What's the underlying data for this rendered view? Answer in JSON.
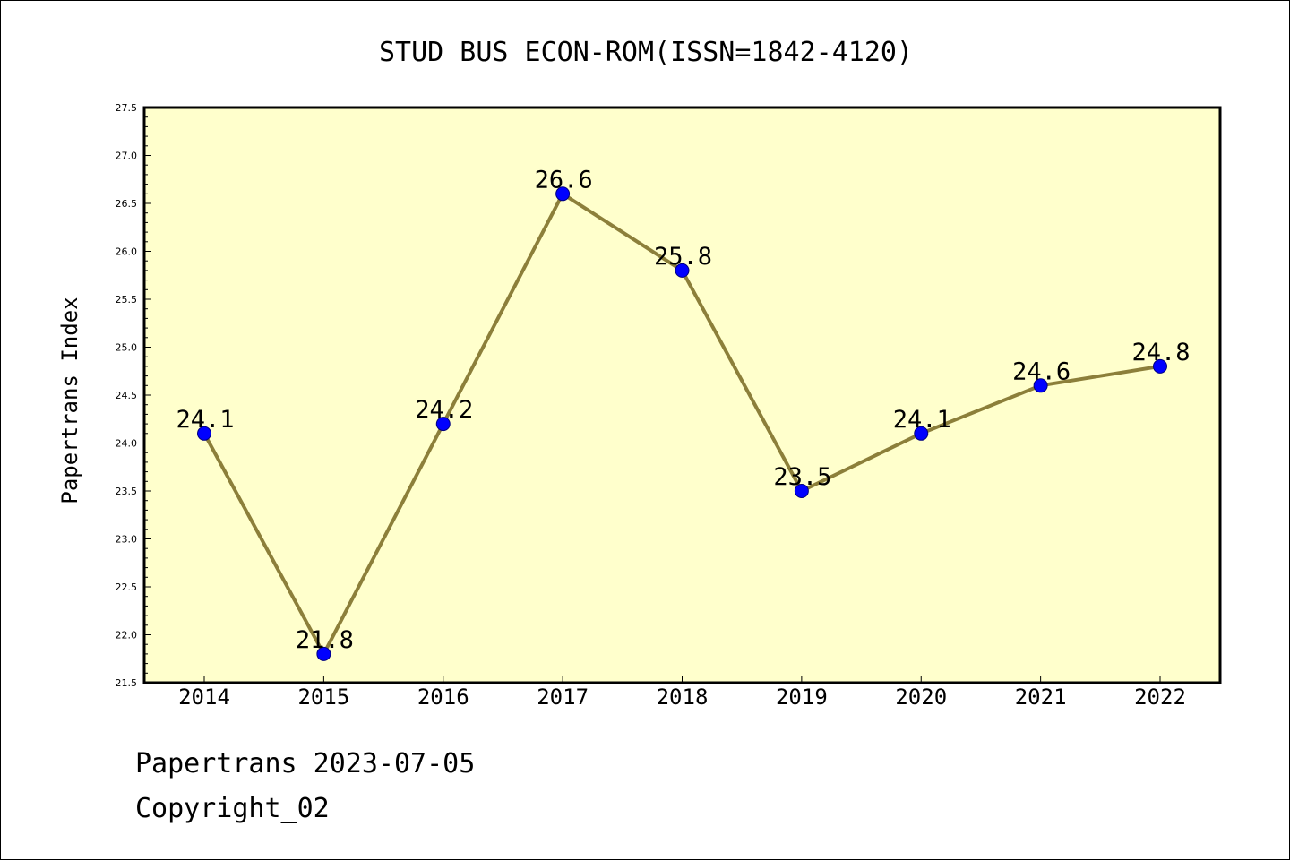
{
  "chart_data": {
    "type": "line",
    "title": "STUD BUS ECON-ROM(ISSN=1842-4120)",
    "xlabel": "",
    "ylabel": "Papertrans Index",
    "categories": [
      "2014",
      "2015",
      "2016",
      "2017",
      "2018",
      "2019",
      "2020",
      "2021",
      "2022"
    ],
    "series": [
      {
        "values": [
          24.1,
          21.8,
          24.2,
          26.6,
          25.8,
          23.5,
          24.1,
          24.6,
          24.8
        ],
        "data_labels": [
          "24.1",
          "21.8",
          "24.2",
          "26.6",
          "25.8",
          "23.5",
          "24.1",
          "24.6",
          "24.8"
        ]
      }
    ],
    "ylim": [
      21.5,
      27.5
    ],
    "yticks": [
      "21.5",
      "22.0",
      "22.5",
      "23.0",
      "23.5",
      "24.0",
      "24.5",
      "25.0",
      "25.5",
      "26.0",
      "26.5",
      "27.0",
      "27.5"
    ],
    "grid": false,
    "legend": "none",
    "colors": {
      "plot_background": "#ffffcc",
      "line": "#8c7f3a",
      "marker": "#0000ff",
      "marker_edge": "#000080"
    }
  },
  "footer": {
    "line1": "Papertrans 2023-07-05",
    "line2": "Copyright_02"
  }
}
